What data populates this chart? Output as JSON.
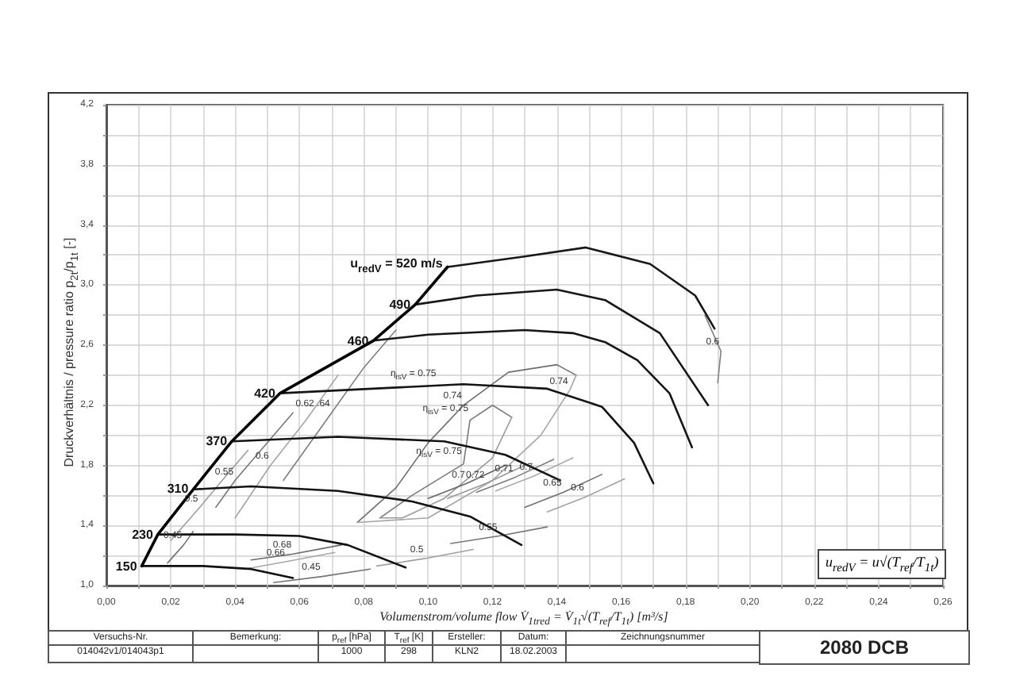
{
  "chart_data": {
    "type": "line",
    "xlabel": "Volumenstrom/volume flow   V̇$_{1tred}$ = V̇$_{1t}$√(T$_{ref}$/T$_{1t}$)  [m³/s]",
    "ylabel": "Druckverhältnis / pressure ratio     p$_{2t}$/p$_{1t}$ [-]",
    "xlim": [
      0,
      0.26
    ],
    "xticks": [
      {
        "value": 0,
        "label": "0,00"
      },
      {
        "value": 0.01,
        "label": null
      },
      {
        "value": 0.02,
        "label": "0,02"
      },
      {
        "value": 0.03,
        "label": null
      },
      {
        "value": 0.04,
        "label": "0,04"
      },
      {
        "value": 0.05,
        "label": null
      },
      {
        "value": 0.06,
        "label": "0,06"
      },
      {
        "value": 0.07,
        "label": null
      },
      {
        "value": 0.08,
        "label": "0,08"
      },
      {
        "value": 0.09,
        "label": null
      },
      {
        "value": 0.1,
        "label": "0,10"
      },
      {
        "value": 0.11,
        "label": null
      },
      {
        "value": 0.12,
        "label": "0,12"
      },
      {
        "value": 0.13,
        "label": null
      },
      {
        "value": 0.14,
        "label": "0,14"
      },
      {
        "value": 0.15,
        "label": null
      },
      {
        "value": 0.16,
        "label": "0,16"
      },
      {
        "value": 0.17,
        "label": null
      },
      {
        "value": 0.18,
        "label": "0,18"
      },
      {
        "value": 0.19,
        "label": null
      },
      {
        "value": 0.2,
        "label": "0,20"
      },
      {
        "value": 0.21,
        "label": null
      },
      {
        "value": 0.22,
        "label": "0,22"
      },
      {
        "value": 0.23,
        "label": null
      },
      {
        "value": 0.24,
        "label": "0,24"
      },
      {
        "value": 0.25,
        "label": null
      },
      {
        "value": 0.26,
        "label": "0,26"
      }
    ],
    "ylim": [
      1.0,
      4.2
    ],
    "yticks": [
      {
        "value": 1.0,
        "label": "1,0"
      },
      {
        "value": 1.2,
        "label": null
      },
      {
        "value": 1.4,
        "label": "1,4"
      },
      {
        "value": 1.6,
        "label": null
      },
      {
        "value": 1.8,
        "label": "1,8"
      },
      {
        "value": 2.0,
        "label": null
      },
      {
        "value": 2.2,
        "label": "2,2"
      },
      {
        "value": 2.4,
        "label": null
      },
      {
        "value": 2.6,
        "label": "2,6"
      },
      {
        "value": 2.8,
        "label": null
      },
      {
        "value": 3.0,
        "label": "3,0"
      },
      {
        "value": 3.2,
        "label": null
      },
      {
        "value": 3.4,
        "label": "3,4"
      },
      {
        "value": 3.6,
        "label": null
      },
      {
        "value": 3.8,
        "label": "3,8"
      },
      {
        "value": 4.0,
        "label": null
      },
      {
        "value": 4.2,
        "label": "4,2"
      }
    ],
    "grid": true,
    "marker": "none",
    "line_style": "solid",
    "series": [
      {
        "name": "150",
        "color": "#111111",
        "x": [
          0.011,
          0.03,
          0.045,
          0.058
        ],
        "values": [
          1.13,
          1.13,
          1.11,
          1.05
        ]
      },
      {
        "name": "230",
        "color": "#121212",
        "x": [
          0.016,
          0.04,
          0.06,
          0.075,
          0.093
        ],
        "values": [
          1.34,
          1.34,
          1.33,
          1.27,
          1.12
        ]
      },
      {
        "name": "310",
        "color": "#131313",
        "x": [
          0.027,
          0.045,
          0.072,
          0.095,
          0.113,
          0.129
        ],
        "values": [
          1.64,
          1.66,
          1.63,
          1.56,
          1.46,
          1.27
        ]
      },
      {
        "name": "370",
        "color": "#141414",
        "x": [
          0.039,
          0.072,
          0.105,
          0.124,
          0.141
        ],
        "values": [
          1.96,
          1.99,
          1.96,
          1.87,
          1.7
        ]
      },
      {
        "name": "420",
        "color": "#151515",
        "x": [
          0.054,
          0.111,
          0.137,
          0.154,
          0.164,
          0.17
        ],
        "values": [
          2.28,
          2.34,
          2.31,
          2.19,
          1.95,
          1.68
        ]
      },
      {
        "name": "460",
        "color": "#161616",
        "x": [
          0.083,
          0.1,
          0.13,
          0.145,
          0.155,
          0.165,
          0.175,
          0.182
        ],
        "values": [
          2.63,
          2.67,
          2.7,
          2.68,
          2.62,
          2.5,
          2.28,
          1.92
        ]
      },
      {
        "name": "490",
        "color": "#171717",
        "x": [
          0.096,
          0.115,
          0.14,
          0.155,
          0.172,
          0.187
        ],
        "values": [
          2.87,
          2.93,
          2.97,
          2.9,
          2.68,
          2.2
        ]
      },
      {
        "name": "u$_{redV}$ = 520 m/s",
        "color": "#181818",
        "x": [
          0.106,
          0.13,
          0.149,
          0.169,
          0.183,
          0.189
        ],
        "values": [
          3.12,
          3.19,
          3.25,
          3.14,
          2.93,
          2.71
        ]
      },
      {
        "color": "#000000",
        "x": [
          0.011,
          0.016,
          0.027,
          0.039,
          0.054,
          0.083,
          0.096,
          0.106
        ],
        "values": [
          1.13,
          1.34,
          1.64,
          1.96,
          2.28,
          2.63,
          2.87,
          3.12
        ]
      },
      {
        "color": "#7a7a7a",
        "x": [
          0.085,
          0.095,
          0.111,
          0.113,
          0.12,
          0.126
        ],
        "values": [
          1.45,
          1.6,
          1.81,
          2.1,
          2.2,
          2.12
        ]
      },
      {
        "color": "#9a9a9a",
        "x": [
          0.085,
          0.092,
          0.105,
          0.12,
          0.126
        ],
        "values": [
          1.45,
          1.45,
          1.58,
          1.85,
          2.12
        ]
      },
      {
        "color": "#6e6e6e",
        "x": [
          0.078,
          0.09,
          0.1,
          0.111,
          0.125,
          0.14,
          0.146
        ],
        "values": [
          1.42,
          1.65,
          1.95,
          2.2,
          2.42,
          2.47,
          2.4
        ]
      },
      {
        "color": "#a6a6a6",
        "x": [
          0.078,
          0.1,
          0.12,
          0.135,
          0.144,
          0.146
        ],
        "values": [
          1.42,
          1.45,
          1.7,
          2.0,
          2.3,
          2.4
        ]
      },
      {
        "color": "#727272",
        "x": [
          0.019,
          0.024,
          0.027
        ],
        "values": [
          1.15,
          1.27,
          1.36
        ]
      },
      {
        "color": "#9e9e9e",
        "x": [
          0.02,
          0.029,
          0.036,
          0.044
        ],
        "values": [
          1.3,
          1.52,
          1.7,
          1.9
        ]
      },
      {
        "color": "#787878",
        "x": [
          0.034,
          0.04,
          0.05,
          0.058
        ],
        "values": [
          1.52,
          1.7,
          1.95,
          2.15
        ]
      },
      {
        "color": "#a4a4a4",
        "x": [
          0.04,
          0.051,
          0.062,
          0.072
        ],
        "values": [
          1.45,
          1.8,
          2.1,
          2.4
        ]
      },
      {
        "color": "#7e7e7e",
        "x": [
          0.055,
          0.07,
          0.08,
          0.09
        ],
        "values": [
          1.7,
          2.15,
          2.45,
          2.7
        ]
      },
      {
        "color": "#6a6a6a",
        "x": [
          0.045,
          0.058,
          0.073
        ],
        "values": [
          1.17,
          1.21,
          1.27
        ]
      },
      {
        "color": "#a8a8a8",
        "x": [
          0.043,
          0.056,
          0.071
        ],
        "values": [
          1.11,
          1.16,
          1.22
        ]
      },
      {
        "color": "#747474",
        "x": [
          0.052,
          0.067,
          0.082
        ],
        "values": [
          1.02,
          1.06,
          1.11
        ]
      },
      {
        "color": "#a0a0a0",
        "x": [
          0.084,
          0.099,
          0.114
        ],
        "values": [
          1.13,
          1.18,
          1.24
        ]
      },
      {
        "color": "#767676",
        "x": [
          0.107,
          0.122,
          0.137
        ],
        "values": [
          1.28,
          1.33,
          1.39
        ]
      },
      {
        "color": "#666666",
        "x": [
          0.1,
          0.112,
          0.124
        ],
        "values": [
          1.58,
          1.68,
          1.8
        ]
      },
      {
        "color": "#999999",
        "x": [
          0.106,
          0.118,
          0.13
        ],
        "values": [
          1.58,
          1.68,
          1.8
        ]
      },
      {
        "color": "#7c7c7c",
        "x": [
          0.115,
          0.127,
          0.139
        ],
        "values": [
          1.62,
          1.72,
          1.84
        ]
      },
      {
        "color": "#aaaaaa",
        "x": [
          0.121,
          0.133,
          0.145
        ],
        "values": [
          1.63,
          1.73,
          1.85
        ]
      },
      {
        "color": "#707070",
        "x": [
          0.13,
          0.142,
          0.154
        ],
        "values": [
          1.52,
          1.62,
          1.74
        ]
      },
      {
        "color": "#a2a2a2",
        "x": [
          0.137,
          0.149,
          0.161
        ],
        "values": [
          1.49,
          1.59,
          1.71
        ]
      },
      {
        "color": "#808080",
        "x": [
          0.186,
          0.191,
          0.19
        ],
        "values": [
          2.8,
          2.56,
          2.35
        ]
      }
    ],
    "annotations": [
      "Versuchs-Nr.",
      "Bemerkung:",
      "p$_{ref}$ [hPa]",
      "T$_{ref}$ [K]",
      "Ersteller:",
      "Datum:",
      "Zeichnungsnummer",
      "014042v1/014043p1",
      "1000",
      "298",
      "KLN2",
      "18.02.2003",
      "2080 DCB",
      "u$_{redV}$ = u√(T$_{ref}$/T$_{1t}$)",
      {
        "text": "η$_{isV}$ = 0.75",
        "x": 0.103,
        "y": 2.33
      },
      {
        "text": "η$_{isV}$ = 0.75",
        "x": 0.113,
        "y": 2.1
      },
      {
        "text": "η$_{isV}$ = 0.75",
        "x": 0.111,
        "y": 1.81
      },
      {
        "text": "0.74",
        "x": 0.111,
        "y": 2.2
      },
      {
        "text": "0.74",
        "x": 0.144,
        "y": 2.3
      },
      {
        "text": "0.62 .64",
        "x": 0.07,
        "y": 2.15
      },
      {
        "text": "0.6",
        "x": 0.051,
        "y": 1.8
      },
      {
        "text": "0.55",
        "x": 0.04,
        "y": 1.7
      },
      {
        "text": "0.5",
        "x": 0.029,
        "y": 1.52
      },
      {
        "text": "0.45",
        "x": 0.024,
        "y": 1.27
      },
      {
        "text": "0.68",
        "x": 0.058,
        "y": 1.21
      },
      {
        "text": "0.66",
        "x": 0.056,
        "y": 1.16
      },
      {
        "text": "0.45",
        "x": 0.067,
        "y": 1.06
      },
      {
        "text": "0.5",
        "x": 0.099,
        "y": 1.18
      },
      {
        "text": "0.55",
        "x": 0.122,
        "y": 1.33
      },
      {
        "text": "0.7",
        "x": 0.112,
        "y": 1.68
      },
      {
        "text": "0.72",
        "x": 0.118,
        "y": 1.68
      },
      {
        "text": "0.71",
        "x": 0.127,
        "y": 1.72
      },
      {
        "text": "0.7",
        "x": 0.133,
        "y": 1.73
      },
      {
        "text": "0.65",
        "x": 0.142,
        "y": 1.62
      },
      {
        "text": "0.6",
        "x": 0.149,
        "y": 1.59
      },
      {
        "text": "0.6",
        "x": 0.191,
        "y": 2.56
      }
    ]
  }
}
